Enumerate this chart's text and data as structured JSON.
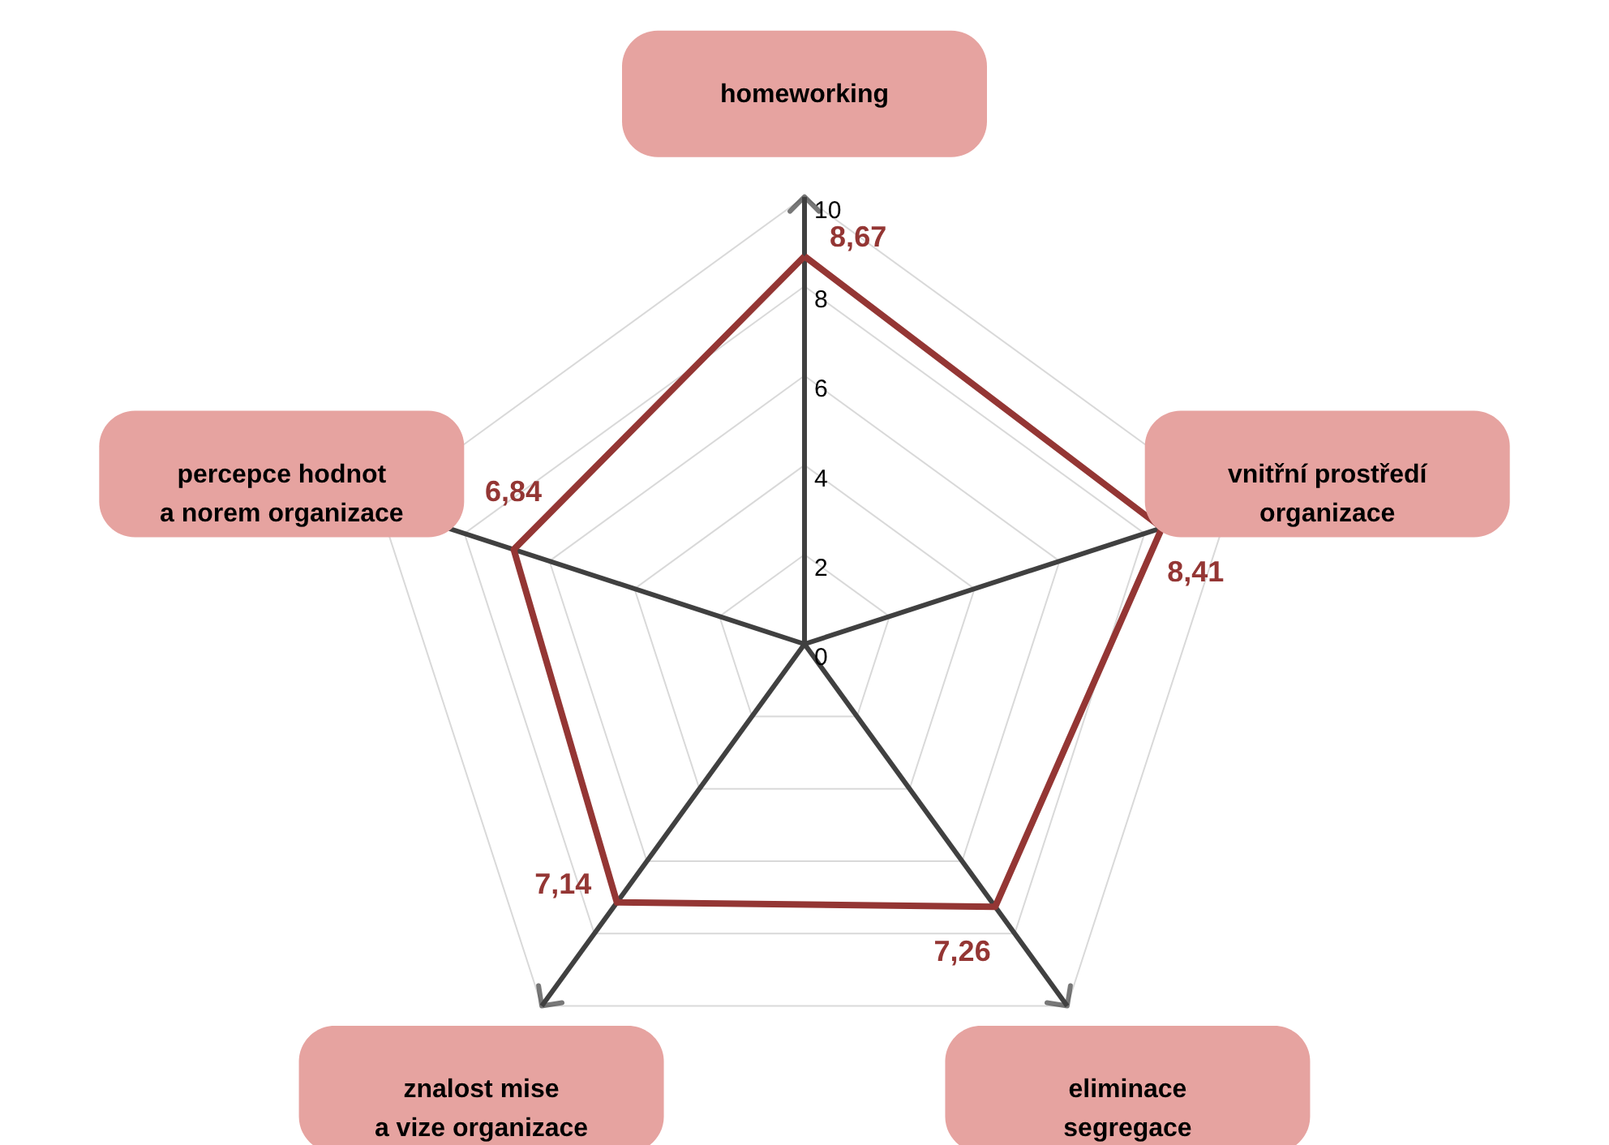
{
  "chart_data": {
    "type": "radar",
    "categories": [
      "homeworking",
      "vnitřní prostředí\norganizace",
      "eliminace\nsegregace",
      "znalost mise\na vize organizace",
      "percepce hodnot\na norem organizace"
    ],
    "series": [
      {
        "color": "#943634",
        "values": [
          8.67,
          8.41,
          7.26,
          7.14,
          6.84
        ],
        "value_labels": [
          "8,67",
          "8,41",
          "7,26",
          "7,14",
          "6,84"
        ]
      }
    ],
    "ylim": [
      0,
      10
    ],
    "yticks": [
      0,
      2,
      4,
      6,
      8,
      10
    ],
    "grid": true
  }
}
